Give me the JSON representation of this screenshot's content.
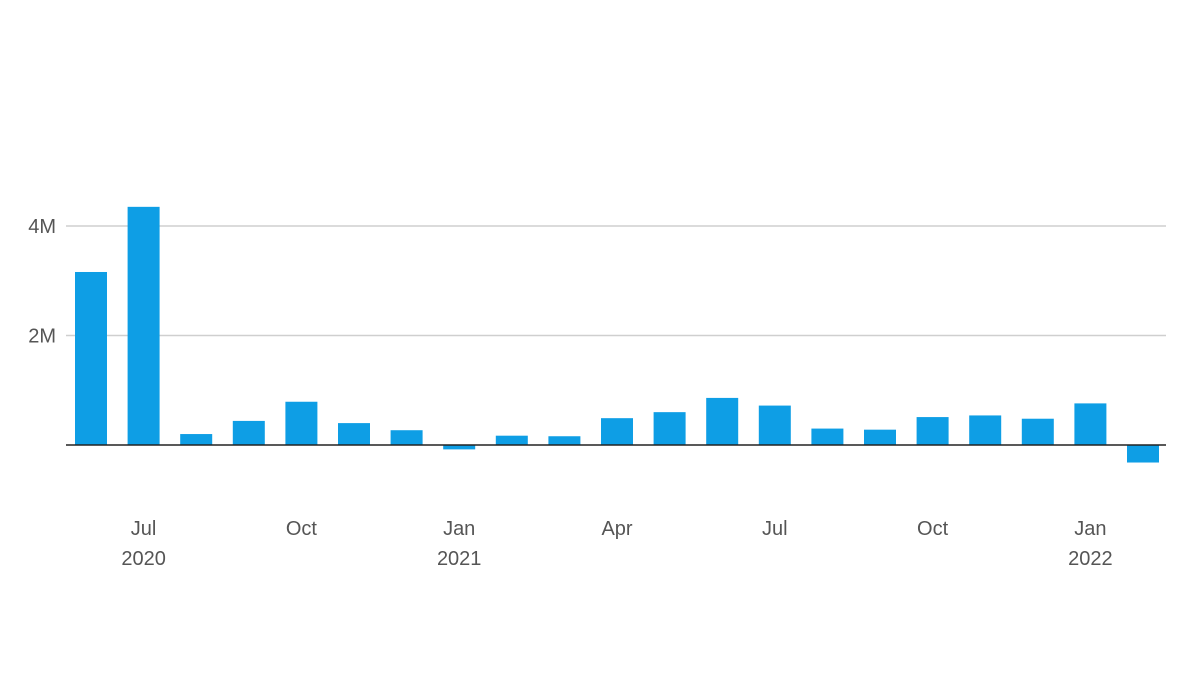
{
  "chart_data": {
    "type": "bar",
    "title": "",
    "xlabel": "",
    "ylabel": "",
    "ylim": [
      -600000,
      4600000
    ],
    "grid": true,
    "categories": [
      "2020-06",
      "2020-07",
      "2020-08",
      "2020-09",
      "2020-10",
      "2020-11",
      "2020-12",
      "2021-01",
      "2021-02",
      "2021-03",
      "2021-04",
      "2021-05",
      "2021-06",
      "2021-07",
      "2021-08",
      "2021-09",
      "2021-10",
      "2021-11",
      "2021-12",
      "2022-01",
      "2022-02"
    ],
    "values": [
      3160000,
      4350000,
      200000,
      440000,
      790000,
      400000,
      270000,
      -80000,
      170000,
      160000,
      490000,
      600000,
      860000,
      720000,
      300000,
      280000,
      510000,
      540000,
      480000,
      760000,
      -320000
    ],
    "yticks": [
      {
        "value": 4000000,
        "label": "4M"
      },
      {
        "value": 2000000,
        "label": "2M"
      }
    ],
    "xticks": [
      {
        "category": "2020-07",
        "label": "Jul",
        "sublabel": "2020"
      },
      {
        "category": "2020-10",
        "label": "Oct",
        "sublabel": ""
      },
      {
        "category": "2021-01",
        "label": "Jan",
        "sublabel": "2021"
      },
      {
        "category": "2021-04",
        "label": "Apr",
        "sublabel": ""
      },
      {
        "category": "2021-07",
        "label": "Jul",
        "sublabel": ""
      },
      {
        "category": "2021-10",
        "label": "Oct",
        "sublabel": ""
      },
      {
        "category": "2022-01",
        "label": "Jan",
        "sublabel": "2022"
      }
    ],
    "colors": {
      "bar": "#0e9ee5",
      "grid": "#cfcfcf",
      "zero_line": "#222222",
      "text": "#555555"
    }
  }
}
